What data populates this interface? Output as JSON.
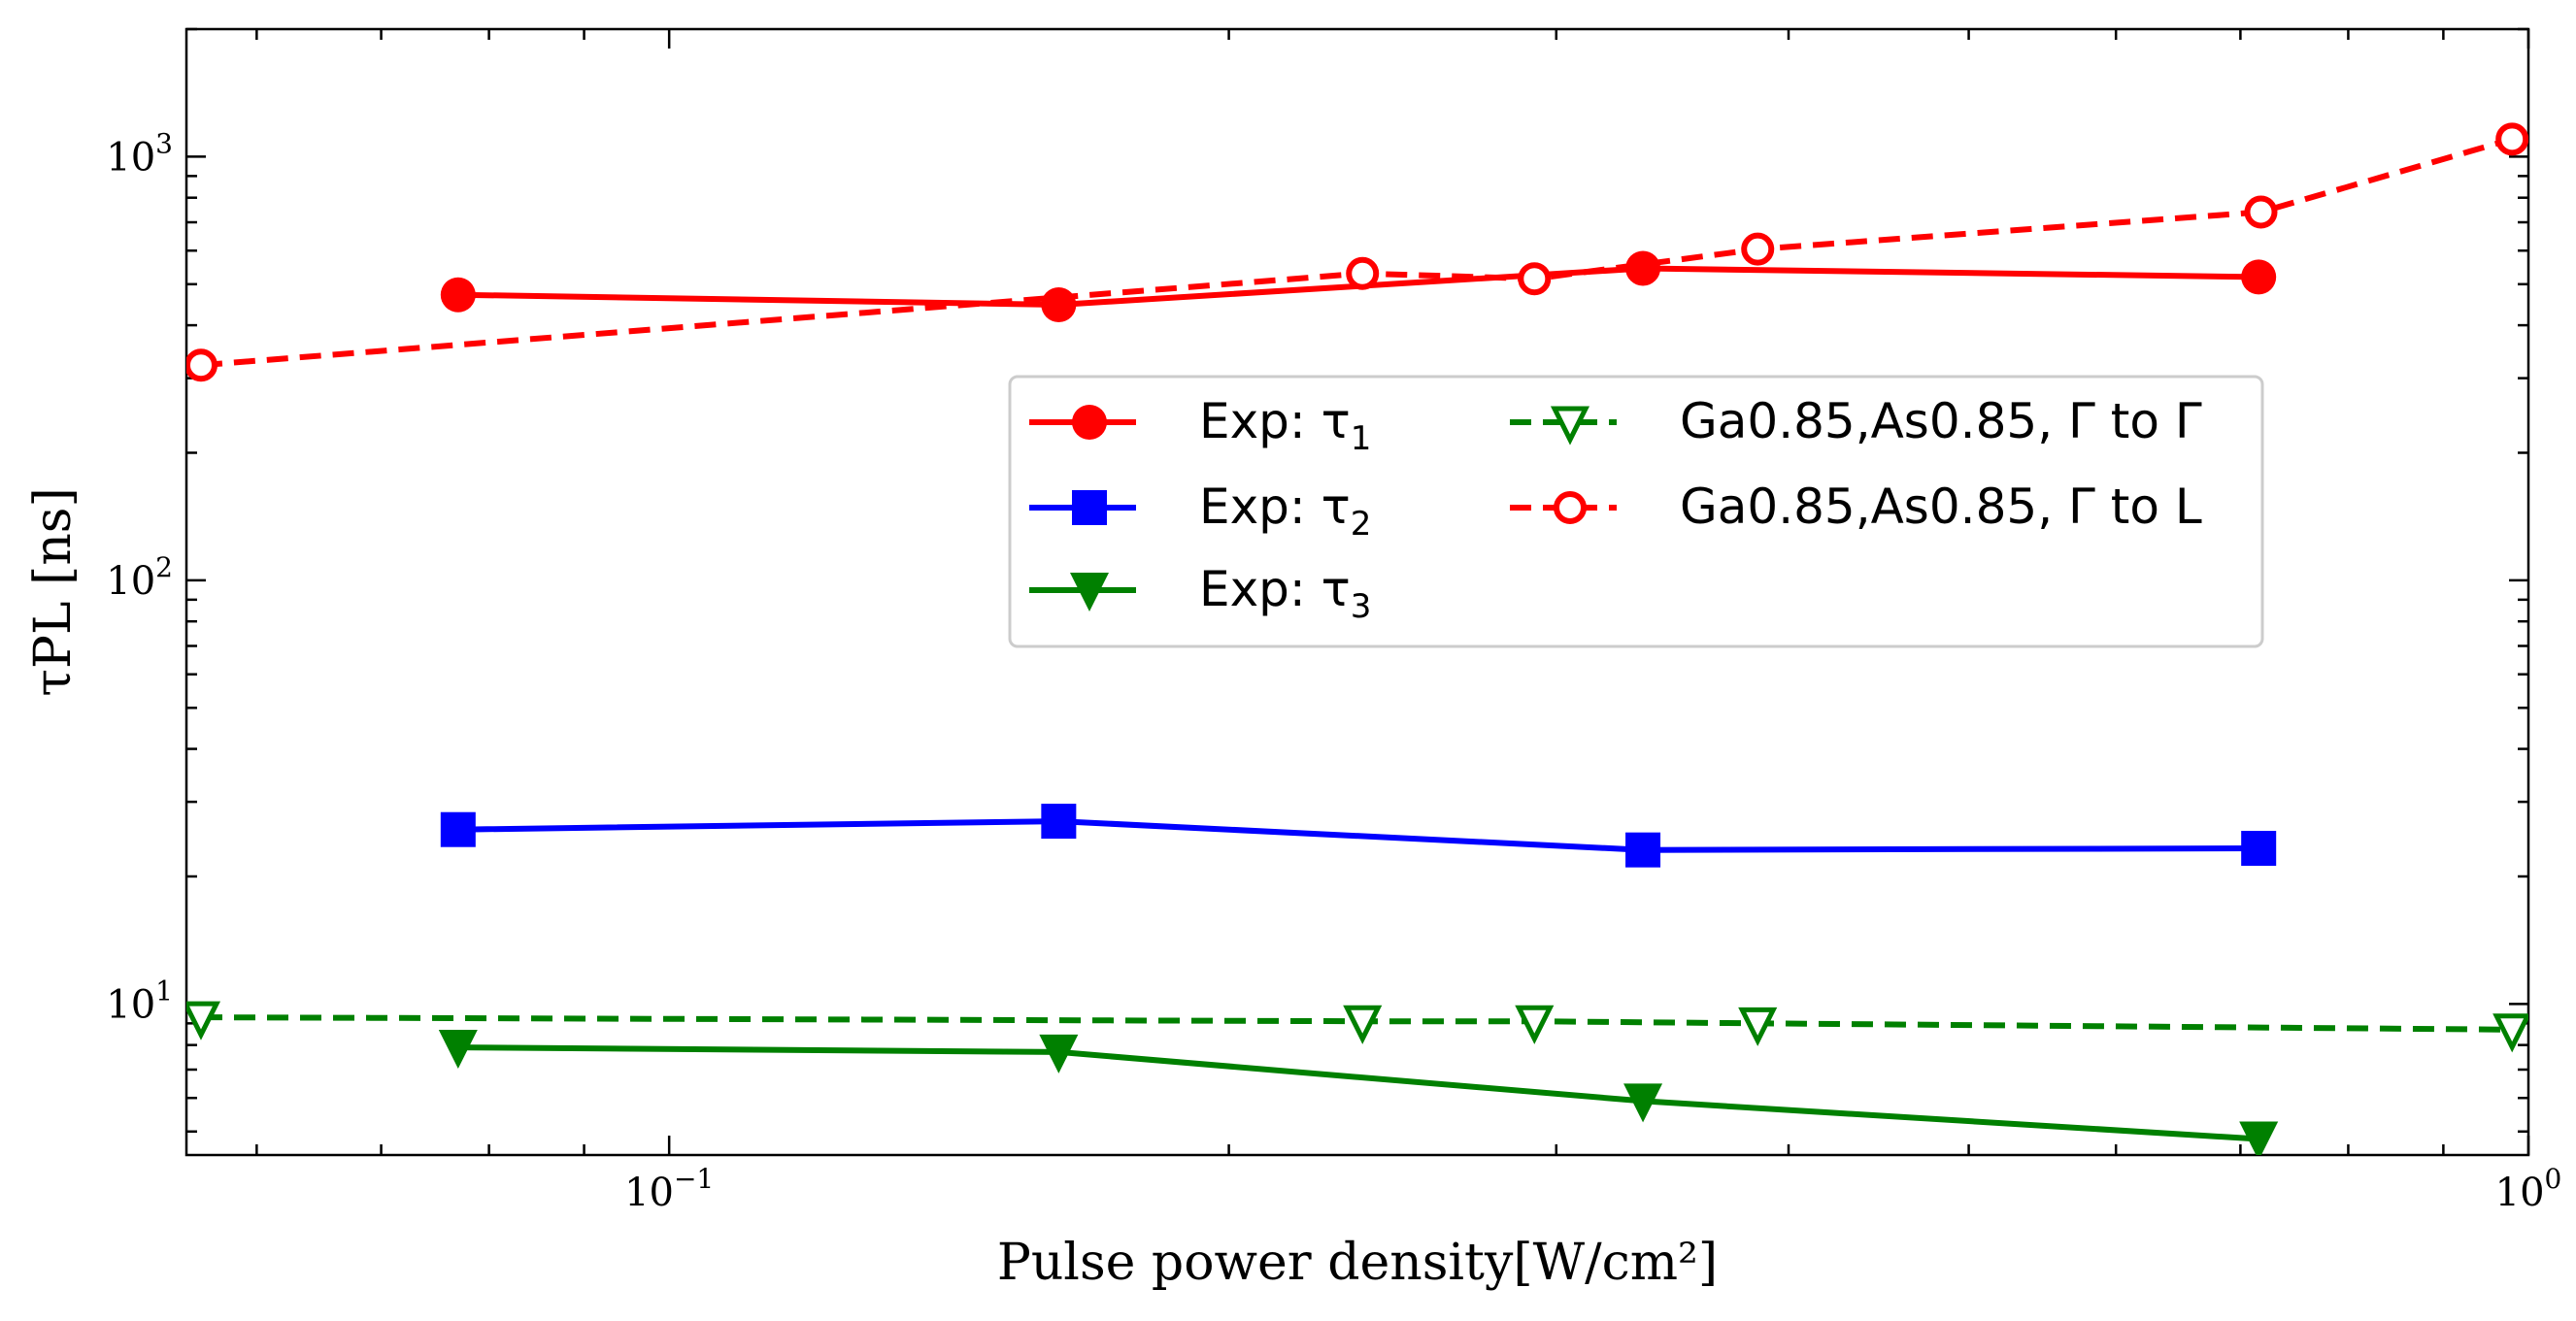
{
  "chart_data": {
    "type": "line",
    "xscale": "log",
    "yscale": "log",
    "xlim": [
      0.055,
      1.0
    ],
    "ylim": [
      4.4,
      2000
    ],
    "xlabel": "Pulse power density[W/cm²]",
    "ylabel": "τPL [ns]",
    "x_ticks": [
      {
        "value": 0.1,
        "label": "10",
        "exp": "−1"
      },
      {
        "value": 1.0,
        "label": "10",
        "exp": "0"
      }
    ],
    "y_ticks": [
      {
        "value": 10,
        "label": "10",
        "exp": "1"
      },
      {
        "value": 100,
        "label": "10",
        "exp": "2"
      },
      {
        "value": 1000,
        "label": "10",
        "exp": "3"
      }
    ],
    "grid": false,
    "legend_placement": "center-right",
    "series": [
      {
        "id": "tau1",
        "name": "Exp: τ1",
        "color": "#ff0000",
        "line": "solid",
        "marker": "circle-filled",
        "x": [
          0.077,
          0.162,
          0.334,
          0.716
        ],
        "y": [
          472,
          447,
          545,
          520
        ]
      },
      {
        "id": "tau2",
        "name": "Exp: τ2",
        "color": "#0000ff",
        "line": "solid",
        "marker": "square-filled",
        "x": [
          0.077,
          0.162,
          0.334,
          0.716
        ],
        "y": [
          25.8,
          27.0,
          23.1,
          23.3
        ]
      },
      {
        "id": "tau3",
        "name": "Exp: τ3",
        "color": "#008000",
        "line": "solid",
        "marker": "triangle-down-filled",
        "x": [
          0.077,
          0.162,
          0.334,
          0.716
        ],
        "y": [
          7.9,
          7.7,
          5.9,
          4.8
        ]
      },
      {
        "id": "gg",
        "name": "Ga0.85,As0.85, Γ to Γ",
        "color": "#008000",
        "line": "dashed",
        "marker": "triangle-down-open",
        "x": [
          0.056,
          0.236,
          0.292,
          0.385,
          0.98
        ],
        "y": [
          9.3,
          9.1,
          9.1,
          9.0,
          8.7
        ]
      },
      {
        "id": "gl",
        "name": "Ga0.85,As0.85, Γ to L",
        "color": "#ff0000",
        "line": "dashed",
        "marker": "circle-open",
        "x": [
          0.056,
          0.236,
          0.292,
          0.385,
          0.718,
          0.98
        ],
        "y": [
          322,
          530,
          515,
          605,
          740,
          1100
        ]
      }
    ]
  }
}
